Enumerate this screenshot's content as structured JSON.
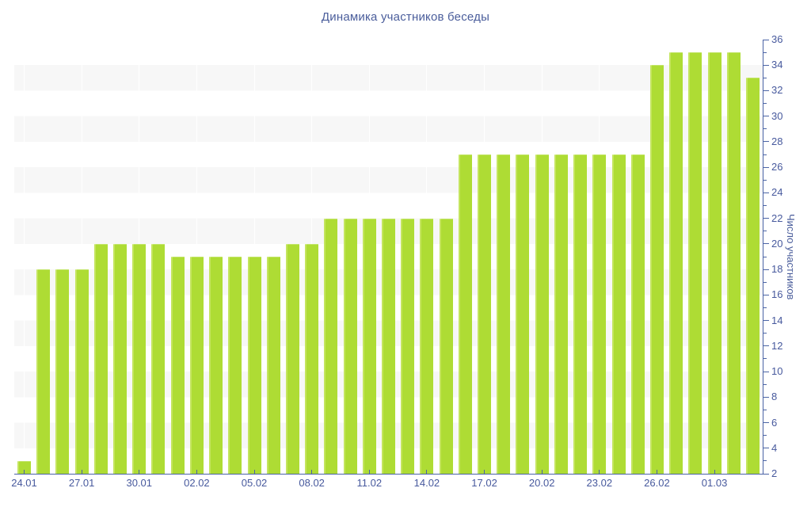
{
  "title": "Динамика участников беседы",
  "y_axis": {
    "label": "Число участников",
    "min": 2,
    "max": 36,
    "major_step": 2,
    "minor_step": 1
  },
  "x_axis": {
    "tick_label_every_n_bars": 3,
    "tick_labels": [
      "24.01",
      "27.01",
      "30.01",
      "02.02",
      "05.02",
      "08.02",
      "11.02",
      "14.02",
      "17.02",
      "20.02",
      "23.02",
      "26.02",
      "01.03"
    ]
  },
  "colors": {
    "bar": "#aedc34",
    "bar_highlight": "#c4e55e",
    "axis_line": "#4a63a5",
    "tick_text": "#47599d",
    "title_text": "#4a5d9b",
    "band_gray": "#f7f7f7",
    "background": "#ffffff"
  },
  "chart_data": {
    "type": "bar",
    "title": "Динамика участников беседы",
    "xlabel": "",
    "ylabel": "Число участников",
    "ylim": [
      2,
      36
    ],
    "y_major_ticks": [
      2,
      4,
      6,
      8,
      10,
      12,
      14,
      16,
      18,
      20,
      22,
      24,
      26,
      28,
      30,
      32,
      34,
      36
    ],
    "grid": "alternating horizontal bands every 2 units, white / light gray; faint white vertical lines at labeled x ticks",
    "legend": "none",
    "categories": [
      "24.01",
      "25.01",
      "26.01",
      "27.01",
      "28.01",
      "29.01",
      "30.01",
      "31.01",
      "01.02",
      "02.02",
      "03.02",
      "04.02",
      "05.02",
      "06.02",
      "07.02",
      "08.02",
      "09.02",
      "10.02",
      "11.02",
      "12.02",
      "13.02",
      "14.02",
      "15.02",
      "16.02",
      "17.02",
      "18.02",
      "19.02",
      "20.02",
      "21.02",
      "22.02",
      "23.02",
      "24.02",
      "25.02",
      "26.02",
      "27.02",
      "28.02",
      "01.03",
      "02.03",
      "03.03"
    ],
    "values": [
      3,
      18,
      18,
      18,
      20,
      20,
      20,
      20,
      19,
      19,
      19,
      19,
      19,
      19,
      20,
      20,
      22,
      22,
      22,
      22,
      22,
      22,
      22,
      27,
      27,
      27,
      27,
      27,
      27,
      27,
      27,
      27,
      27,
      34,
      35,
      35,
      35,
      35,
      33
    ],
    "x_shown_tick_labels": [
      "24.01",
      "27.01",
      "30.01",
      "02.02",
      "05.02",
      "08.02",
      "11.02",
      "14.02",
      "17.02",
      "20.02",
      "23.02",
      "26.02",
      "01.03"
    ]
  }
}
